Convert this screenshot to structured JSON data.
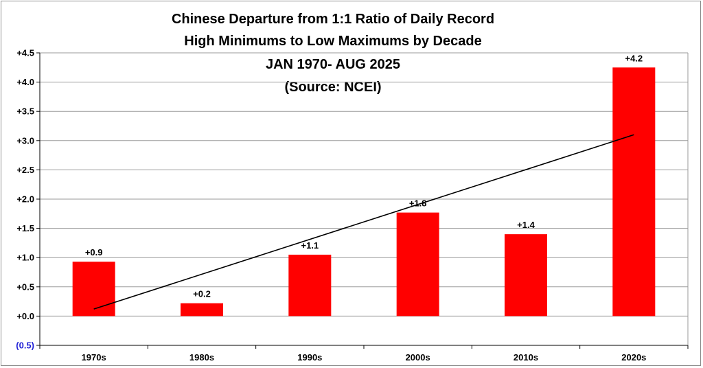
{
  "chart_data": {
    "type": "bar",
    "title_lines": [
      "Chinese Departure from 1:1 Ratio of Daily Record",
      "High Minimums to Low Maximums by Decade",
      "JAN 1970- AUG 2025",
      "(Source: NCEI)"
    ],
    "categories": [
      "1970s",
      "1980s",
      "1990s",
      "2000s",
      "2010s",
      "2020s"
    ],
    "values": [
      0.93,
      0.22,
      1.05,
      1.77,
      1.4,
      4.25
    ],
    "data_labels": [
      "+0.9",
      "+0.2",
      "+1.1",
      "+1.8",
      "+1.4",
      "+4.2"
    ],
    "y_ticks": [
      {
        "value": -0.5,
        "label": "(0.5)"
      },
      {
        "value": 0.0,
        "label": "+0.0"
      },
      {
        "value": 0.5,
        "label": "+0.5"
      },
      {
        "value": 1.0,
        "label": "+1.0"
      },
      {
        "value": 1.5,
        "label": "+1.5"
      },
      {
        "value": 2.0,
        "label": "+2.0"
      },
      {
        "value": 2.5,
        "label": "+2.5"
      },
      {
        "value": 3.0,
        "label": "+3.0"
      },
      {
        "value": 3.5,
        "label": "+3.5"
      },
      {
        "value": 4.0,
        "label": "+4.0"
      },
      {
        "value": 4.5,
        "label": "+4.5"
      }
    ],
    "ylim": [
      -0.5,
      4.5
    ],
    "trendline": {
      "start": 0.12,
      "end": 3.1
    },
    "grid": true,
    "legend": "none",
    "bar_color": "#ff0000",
    "grid_color": "#9a9a9a",
    "trend_color": "#000000"
  }
}
